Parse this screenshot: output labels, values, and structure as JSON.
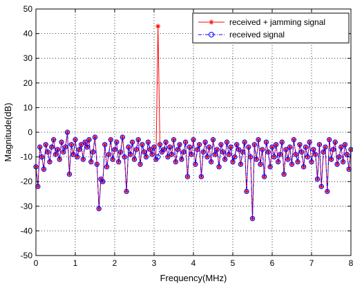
{
  "chart_data": {
    "type": "line",
    "title": "",
    "xlabel": "Frequency(MHz)",
    "ylabel": "Magnitude(dB)",
    "xlim": [
      0,
      8
    ],
    "ylim": [
      -50,
      50
    ],
    "x_ticks": [
      0,
      1,
      2,
      3,
      4,
      5,
      6,
      7,
      8
    ],
    "y_ticks": [
      -50,
      -40,
      -30,
      -20,
      -10,
      0,
      10,
      20,
      30,
      40,
      50
    ],
    "x_tick_labels": [
      "0",
      "1",
      "2",
      "3",
      "4",
      "5",
      "6",
      "7",
      "8"
    ],
    "y_tick_labels": [
      "-50",
      "-40",
      "-30",
      "-20",
      "-10",
      "0",
      "10",
      "20",
      "30",
      "40",
      "50"
    ],
    "grid": true,
    "grid_style": "dotted",
    "legend_position": "top-right",
    "x": [
      0.0,
      0.05,
      0.1,
      0.15,
      0.2,
      0.25,
      0.3,
      0.35,
      0.4,
      0.45,
      0.5,
      0.55,
      0.6,
      0.65,
      0.7,
      0.75,
      0.8,
      0.85,
      0.9,
      0.95,
      1.0,
      1.05,
      1.1,
      1.15,
      1.2,
      1.25,
      1.3,
      1.35,
      1.4,
      1.45,
      1.5,
      1.55,
      1.6,
      1.65,
      1.7,
      1.75,
      1.8,
      1.85,
      1.9,
      1.95,
      2.0,
      2.05,
      2.1,
      2.15,
      2.2,
      2.25,
      2.3,
      2.35,
      2.4,
      2.45,
      2.5,
      2.55,
      2.6,
      2.65,
      2.7,
      2.75,
      2.8,
      2.85,
      2.9,
      2.95,
      3.0,
      3.05,
      3.1,
      3.15,
      3.2,
      3.25,
      3.3,
      3.35,
      3.4,
      3.45,
      3.5,
      3.55,
      3.6,
      3.65,
      3.7,
      3.75,
      3.8,
      3.85,
      3.9,
      3.95,
      4.0,
      4.05,
      4.1,
      4.15,
      4.2,
      4.25,
      4.3,
      4.35,
      4.4,
      4.45,
      4.5,
      4.55,
      4.6,
      4.65,
      4.7,
      4.75,
      4.8,
      4.85,
      4.9,
      4.95,
      5.0,
      5.05,
      5.1,
      5.15,
      5.2,
      5.25,
      5.3,
      5.35,
      5.4,
      5.45,
      5.5,
      5.55,
      5.6,
      5.65,
      5.7,
      5.75,
      5.8,
      5.85,
      5.9,
      5.95,
      6.0,
      6.05,
      6.1,
      6.15,
      6.2,
      6.25,
      6.3,
      6.35,
      6.4,
      6.45,
      6.5,
      6.55,
      6.6,
      6.65,
      6.7,
      6.75,
      6.8,
      6.85,
      6.9,
      6.95,
      7.0,
      7.05,
      7.1,
      7.15,
      7.2,
      7.25,
      7.3,
      7.35,
      7.4,
      7.45,
      7.5,
      7.55,
      7.6,
      7.65,
      7.7,
      7.75,
      7.8,
      7.85,
      7.9,
      7.95,
      8.0
    ],
    "series": [
      {
        "name": "received + jamming signal",
        "color": "#ff0000",
        "marker": "asterisk",
        "line_style": "solid",
        "marker_points": [
          {
            "x": 3.1,
            "y": 43
          }
        ],
        "values": [
          -14,
          -22,
          -6,
          -10,
          -15,
          -5,
          -8,
          -12,
          -6,
          -3,
          -9,
          -7,
          -11,
          -4,
          -8,
          -6,
          0,
          -17,
          -5,
          -9,
          -3,
          -10,
          -7,
          -5,
          -11,
          -4,
          -6,
          -3,
          -12,
          -8,
          -2,
          -13,
          -31,
          -19,
          -20,
          -5,
          -14,
          -9,
          -3,
          -11,
          -7,
          -4,
          -12,
          -8,
          -2,
          -10,
          -24,
          -6,
          -9,
          -4,
          -11,
          -7,
          -3,
          -13,
          -5,
          -8,
          -10,
          -4,
          -7,
          -9,
          -6,
          -11,
          43,
          -5,
          -8,
          -7,
          -4,
          -10,
          -6,
          -9,
          -3,
          -12,
          -7,
          -5,
          -11,
          -8,
          -4,
          -18,
          -6,
          -9,
          -3,
          -13,
          -7,
          -5,
          -18,
          -8,
          -4,
          -10,
          -6,
          -12,
          -3,
          -9,
          -7,
          -14,
          -5,
          -8,
          -11,
          -4,
          -9,
          -6,
          -12,
          -10,
          -5,
          -7,
          -13,
          -8,
          -4,
          -24,
          -6,
          -10,
          -35,
          -5,
          -11,
          -3,
          -13,
          -7,
          -18,
          -4,
          -8,
          -14,
          -6,
          -10,
          -5,
          -12,
          -9,
          -4,
          -17,
          -7,
          -11,
          -6,
          -13,
          -3,
          -9,
          -12,
          -5,
          -8,
          -14,
          -6,
          -10,
          -4,
          -12,
          -7,
          -9,
          -19,
          -5,
          -22,
          -8,
          -6,
          -24,
          -3,
          -11,
          -7,
          -4,
          -13,
          -10,
          -6,
          -12,
          -5,
          -9,
          -15,
          -7
        ]
      },
      {
        "name": "received signal",
        "color": "#0000ff",
        "marker": "circle",
        "line_style": "dash-dot",
        "values": [
          -14,
          -22,
          -6,
          -10,
          -15,
          -5,
          -8,
          -12,
          -6,
          -3,
          -9,
          -7,
          -11,
          -4,
          -8,
          -6,
          0,
          -17,
          -5,
          -9,
          -3,
          -10,
          -7,
          -5,
          -11,
          -4,
          -6,
          -3,
          -12,
          -8,
          -2,
          -13,
          -31,
          -19,
          -20,
          -5,
          -14,
          -9,
          -3,
          -11,
          -7,
          -4,
          -12,
          -8,
          -2,
          -10,
          -24,
          -6,
          -9,
          -4,
          -11,
          -7,
          -3,
          -13,
          -5,
          -8,
          -10,
          -4,
          -7,
          -9,
          -6,
          -11,
          -10,
          -5,
          -8,
          -7,
          -4,
          -10,
          -6,
          -9,
          -3,
          -12,
          -7,
          -5,
          -11,
          -8,
          -4,
          -18,
          -6,
          -9,
          -3,
          -13,
          -7,
          -5,
          -18,
          -8,
          -4,
          -10,
          -6,
          -12,
          -3,
          -9,
          -7,
          -14,
          -5,
          -8,
          -11,
          -4,
          -9,
          -6,
          -12,
          -10,
          -5,
          -7,
          -13,
          -8,
          -4,
          -24,
          -6,
          -10,
          -35,
          -5,
          -11,
          -3,
          -13,
          -7,
          -18,
          -4,
          -8,
          -14,
          -6,
          -10,
          -5,
          -12,
          -9,
          -4,
          -17,
          -7,
          -11,
          -6,
          -13,
          -3,
          -9,
          -12,
          -5,
          -8,
          -14,
          -6,
          -10,
          -4,
          -12,
          -7,
          -9,
          -19,
          -5,
          -22,
          -8,
          -6,
          -24,
          -3,
          -11,
          -7,
          -4,
          -13,
          -10,
          -6,
          -12,
          -5,
          -9,
          -15,
          -7
        ]
      }
    ]
  }
}
